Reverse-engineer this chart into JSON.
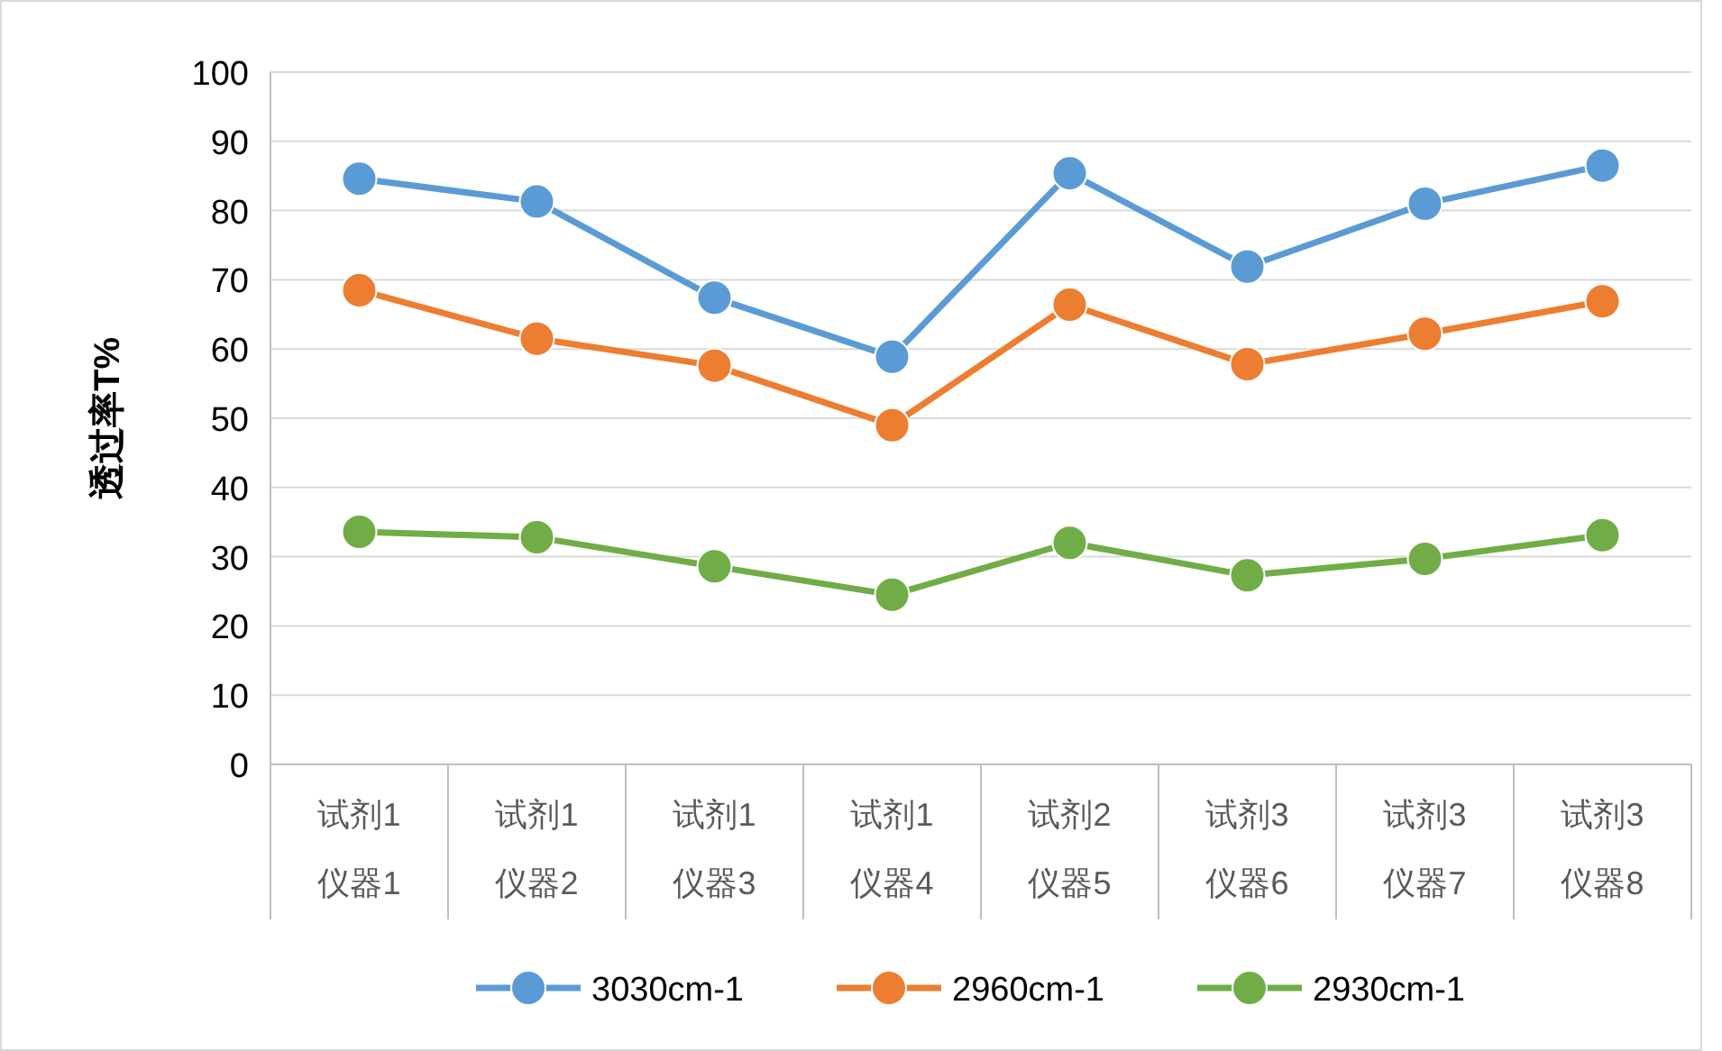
{
  "chart_data": {
    "type": "line",
    "ylabel": "透过率T%",
    "categories": [
      "试剂1\n仪器1",
      "试剂1\n仪器2",
      "试剂1\n仪器3",
      "试剂1\n仪器4",
      "试剂2\n仪器5",
      "试剂3\n仪器6",
      "试剂3\n仪器7",
      "试剂3\n仪器8"
    ],
    "series": [
      {
        "name": "3030cm-1",
        "color": "#5b9bd5",
        "values": [
          84.6,
          81.3,
          67.4,
          58.9,
          85.4,
          71.9,
          81,
          86.5
        ]
      },
      {
        "name": "2960cm-1",
        "color": "#ed7d31",
        "values": [
          68.5,
          61.5,
          57.6,
          49,
          66.4,
          57.8,
          62.2,
          66.9
        ]
      },
      {
        "name": "2930cm-1",
        "color": "#70ad47",
        "values": [
          33.6,
          32.8,
          28.6,
          24.5,
          32,
          27.3,
          29.7,
          33.1
        ]
      }
    ],
    "ylim": [
      0,
      100
    ],
    "yticks": [
      0,
      10,
      20,
      30,
      40,
      50,
      60,
      70,
      80,
      90,
      100
    ],
    "grid": "y",
    "legend": "bottom",
    "marker": "circle",
    "line_style": "solid"
  }
}
